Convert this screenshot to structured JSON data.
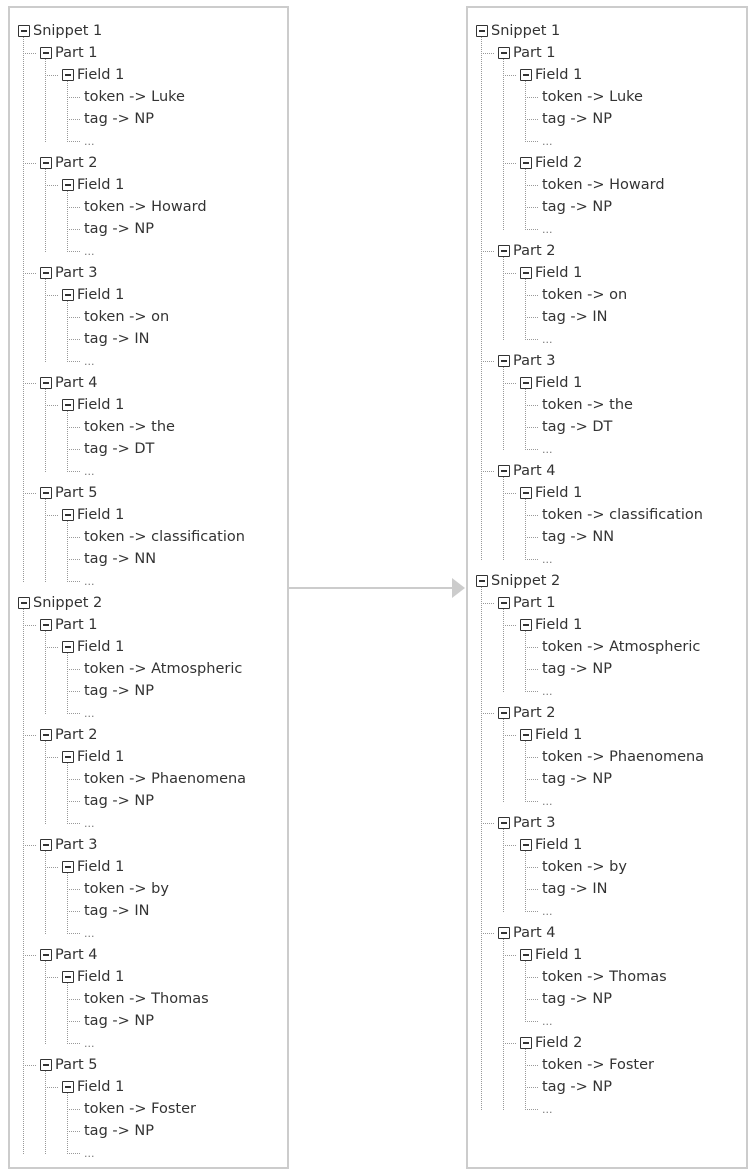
{
  "left_tree": [
    {
      "label": "Snippet 1",
      "children": [
        {
          "label": "Part 1",
          "children": [
            {
              "label": "Field 1",
              "leaves": [
                "token -> Luke",
                "tag -> NP",
                "..."
              ]
            }
          ]
        },
        {
          "label": "Part 2",
          "children": [
            {
              "label": "Field 1",
              "leaves": [
                "token -> Howard",
                "tag -> NP",
                "..."
              ]
            }
          ]
        },
        {
          "label": "Part 3",
          "children": [
            {
              "label": "Field 1",
              "leaves": [
                "token -> on",
                "tag -> IN",
                "..."
              ]
            }
          ]
        },
        {
          "label": "Part 4",
          "children": [
            {
              "label": "Field 1",
              "leaves": [
                "token -> the",
                "tag -> DT",
                "..."
              ]
            }
          ]
        },
        {
          "label": "Part 5",
          "children": [
            {
              "label": "Field 1",
              "leaves": [
                "token -> classification",
                "tag -> NN",
                "..."
              ]
            }
          ]
        }
      ]
    },
    {
      "label": "Snippet 2",
      "children": [
        {
          "label": "Part 1",
          "children": [
            {
              "label": "Field 1",
              "leaves": [
                "token -> Atmospheric",
                "tag -> NP",
                "..."
              ]
            }
          ]
        },
        {
          "label": "Part 2",
          "children": [
            {
              "label": "Field 1",
              "leaves": [
                "token -> Phaenomena",
                "tag -> NP",
                "..."
              ]
            }
          ]
        },
        {
          "label": "Part 3",
          "children": [
            {
              "label": "Field 1",
              "leaves": [
                "token -> by",
                "tag -> IN",
                "..."
              ]
            }
          ]
        },
        {
          "label": "Part 4",
          "children": [
            {
              "label": "Field 1",
              "leaves": [
                "token -> Thomas",
                "tag -> NP",
                "..."
              ]
            }
          ]
        },
        {
          "label": "Part 5",
          "children": [
            {
              "label": "Field 1",
              "leaves": [
                "token -> Foster",
                "tag -> NP",
                "..."
              ]
            }
          ]
        }
      ]
    }
  ],
  "right_tree": [
    {
      "label": "Snippet 1",
      "children": [
        {
          "label": "Part 1",
          "children": [
            {
              "label": "Field 1",
              "leaves": [
                "token -> Luke",
                "tag -> NP",
                "..."
              ]
            },
            {
              "label": "Field 2",
              "leaves": [
                "token -> Howard",
                "tag -> NP",
                "..."
              ]
            }
          ]
        },
        {
          "label": "Part 2",
          "children": [
            {
              "label": "Field 1",
              "leaves": [
                "token -> on",
                "tag -> IN",
                "..."
              ]
            }
          ]
        },
        {
          "label": "Part 3",
          "children": [
            {
              "label": "Field 1",
              "leaves": [
                "token -> the",
                "tag -> DT",
                "..."
              ]
            }
          ]
        },
        {
          "label": "Part 4",
          "children": [
            {
              "label": "Field 1",
              "leaves": [
                "token -> classification",
                "tag -> NN",
                "..."
              ]
            }
          ]
        }
      ]
    },
    {
      "label": "Snippet 2",
      "children": [
        {
          "label": "Part 1",
          "children": [
            {
              "label": "Field 1",
              "leaves": [
                "token -> Atmospheric",
                "tag -> NP",
                "..."
              ]
            }
          ]
        },
        {
          "label": "Part 2",
          "children": [
            {
              "label": "Field 1",
              "leaves": [
                "token -> Phaenomena",
                "tag -> NP",
                "..."
              ]
            }
          ]
        },
        {
          "label": "Part 3",
          "children": [
            {
              "label": "Field 1",
              "leaves": [
                "token -> by",
                "tag -> IN",
                "..."
              ]
            }
          ]
        },
        {
          "label": "Part 4",
          "children": [
            {
              "label": "Field 1",
              "leaves": [
                "token -> Thomas",
                "tag -> NP",
                "..."
              ]
            },
            {
              "label": "Field 2",
              "leaves": [
                "token -> Foster",
                "tag -> NP",
                "..."
              ]
            }
          ]
        }
      ]
    }
  ],
  "colors": {
    "border": "#cccccc",
    "text": "#333333",
    "connector": "#999999"
  }
}
